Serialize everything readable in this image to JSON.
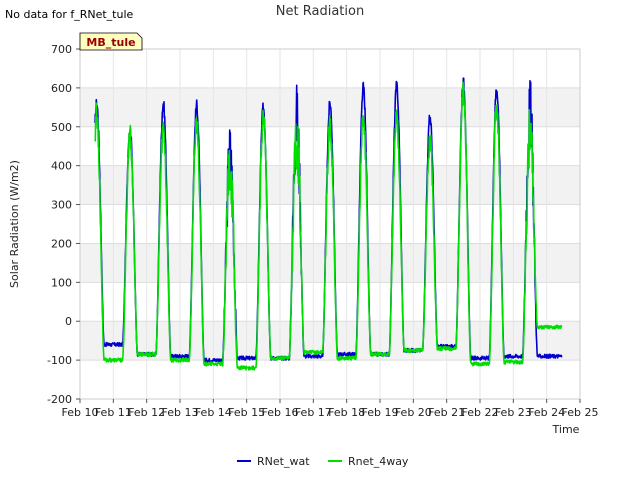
{
  "chart_data": {
    "type": "line",
    "title": "Net Radiation",
    "note": "No data for f_RNet_tule",
    "site_label": "MB_tule",
    "xlabel": "Time",
    "ylabel": "Solar Radiation (W/m2)",
    "ylim": [
      -200,
      700
    ],
    "yticks": [
      -200,
      -100,
      0,
      100,
      200,
      300,
      400,
      500,
      600,
      700
    ],
    "xlim": [
      10,
      25
    ],
    "xticks": [
      10,
      11,
      12,
      13,
      14,
      15,
      16,
      17,
      18,
      19,
      20,
      21,
      22,
      23,
      24,
      25
    ],
    "xtick_labels": [
      "Feb 10",
      "Feb 11",
      "Feb 12",
      "Feb 13",
      "Feb 14",
      "Feb 15",
      "Feb 16",
      "Feb 17",
      "Feb 18",
      "Feb 19",
      "Feb 20",
      "Feb 21",
      "Feb 22",
      "Feb 23",
      "Feb 24",
      "Feb 25"
    ],
    "grid": true,
    "legend_position": "bottom-center",
    "series": [
      {
        "name": "RNet_wat",
        "color": "#0000cc",
        "daily_peaks": [
          560,
          495,
          560,
          555,
          430,
          550,
          525,
          560,
          600,
          605,
          525,
          615,
          600,
          540
        ],
        "night_values": [
          -90,
          -60,
          -85,
          -90,
          -100,
          -95,
          -95,
          -90,
          -85,
          -85,
          -75,
          -65,
          -95,
          -90,
          -90
        ]
      },
      {
        "name": "Rnet_4way",
        "color": "#00dd00",
        "daily_peaks": [
          530,
          480,
          500,
          510,
          410,
          530,
          480,
          505,
          520,
          525,
          465,
          590,
          555,
          480
        ],
        "night_values": [
          -35,
          -100,
          -85,
          -100,
          -110,
          -120,
          -95,
          -80,
          -95,
          -85,
          -75,
          -70,
          -110,
          -105,
          -15
        ]
      }
    ]
  }
}
